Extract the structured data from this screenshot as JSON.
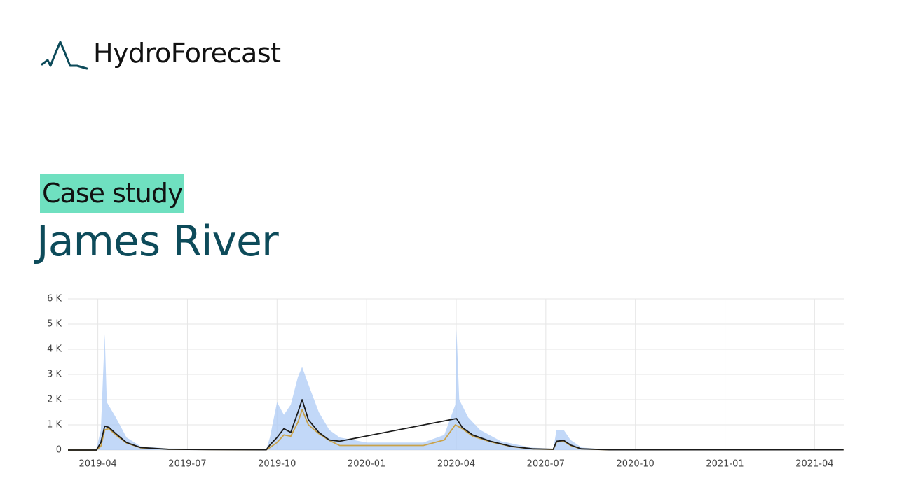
{
  "header": {
    "brand": "HydroForecast",
    "tag": "Case study",
    "title": "James River"
  },
  "chart_data": {
    "type": "line",
    "xlim": [
      -1,
      25
    ],
    "ylim": [
      0,
      6000
    ],
    "xticks": [
      {
        "value": 0,
        "label": "2019-04"
      },
      {
        "value": 3,
        "label": "2019-07"
      },
      {
        "value": 6,
        "label": "2019-10"
      },
      {
        "value": 9,
        "label": "2020-01"
      },
      {
        "value": 12,
        "label": "2020-04"
      },
      {
        "value": 15,
        "label": "2020-07"
      },
      {
        "value": 18,
        "label": "2020-10"
      },
      {
        "value": 21,
        "label": "2021-01"
      },
      {
        "value": 24,
        "label": "2021-04"
      }
    ],
    "yticks": [
      0,
      {
        "value": 1000,
        "label": "1 K"
      },
      {
        "value": 2000,
        "label": "2 K"
      },
      {
        "value": 3000,
        "label": "3 K"
      },
      {
        "value": 4000,
        "label": "4 K"
      },
      {
        "value": 5000,
        "label": "5 K"
      },
      {
        "value": 6000,
        "label": "6 K"
      }
    ],
    "grid": true,
    "series": [
      {
        "type": "area",
        "color": "#a8c8f5",
        "x": [
          -1,
          -0.05,
          0.1,
          0.23,
          0.3,
          0.6,
          0.96,
          1.43,
          2.37,
          5.64,
          5.76,
          6.0,
          6.23,
          6.46,
          6.7,
          6.84,
          7.05,
          7.4,
          7.75,
          8.1,
          9,
          10.9,
          11.6,
          11.97,
          12.01,
          12.1,
          12.4,
          12.8,
          13.5,
          14.5,
          15.25,
          15.36,
          15.6,
          15.83,
          16.2,
          17.1,
          24.97
        ],
        "values": [
          0,
          50,
          800,
          4600,
          1900,
          1300,
          500,
          150,
          60,
          30,
          500,
          1900,
          1400,
          1800,
          2900,
          3300,
          2600,
          1500,
          800,
          500,
          300,
          300,
          600,
          1800,
          4800,
          2000,
          1300,
          800,
          350,
          100,
          50,
          800,
          800,
          400,
          100,
          20,
          10
        ]
      },
      {
        "color": "#c9a24a",
        "x": [
          -1,
          -0.05,
          0.1,
          0.23,
          0.37,
          0.6,
          0.96,
          1.43,
          2.37,
          5.64,
          5.76,
          6.0,
          6.23,
          6.46,
          6.7,
          6.84,
          7.05,
          7.4,
          7.75,
          8.1,
          10.9,
          11.6,
          11.97,
          12.2,
          12.55,
          13.14,
          13.84,
          14.54,
          15.25,
          15.36,
          15.6,
          15.83,
          16.18,
          17.12,
          24.97
        ],
        "values": [
          0,
          0,
          150,
          800,
          850,
          600,
          280,
          90,
          30,
          10,
          100,
          300,
          600,
          550,
          1100,
          1600,
          1000,
          650,
          380,
          180,
          180,
          400,
          1000,
          850,
          550,
          330,
          140,
          45,
          25,
          320,
          350,
          180,
          45,
          10,
          10
        ]
      },
      {
        "color": "#1a1a1a",
        "x": [
          -1,
          -0.05,
          0.1,
          0.23,
          0.37,
          0.6,
          0.96,
          1.43,
          2.37,
          3.77,
          5.64,
          5.76,
          6.0,
          6.23,
          6.46,
          6.7,
          6.84,
          7.05,
          7.4,
          7.75,
          8.1,
          12.01,
          12.2,
          12.55,
          13.14,
          13.84,
          14.54,
          15.25,
          15.36,
          15.6,
          15.83,
          16.18,
          17.12,
          24.97
        ],
        "values": [
          0,
          0,
          300,
          950,
          900,
          650,
          300,
          100,
          30,
          20,
          10,
          200,
          500,
          850,
          700,
          1500,
          2000,
          1200,
          700,
          400,
          350,
          1250,
          900,
          600,
          350,
          150,
          50,
          30,
          350,
          380,
          200,
          50,
          10,
          10
        ]
      }
    ]
  }
}
